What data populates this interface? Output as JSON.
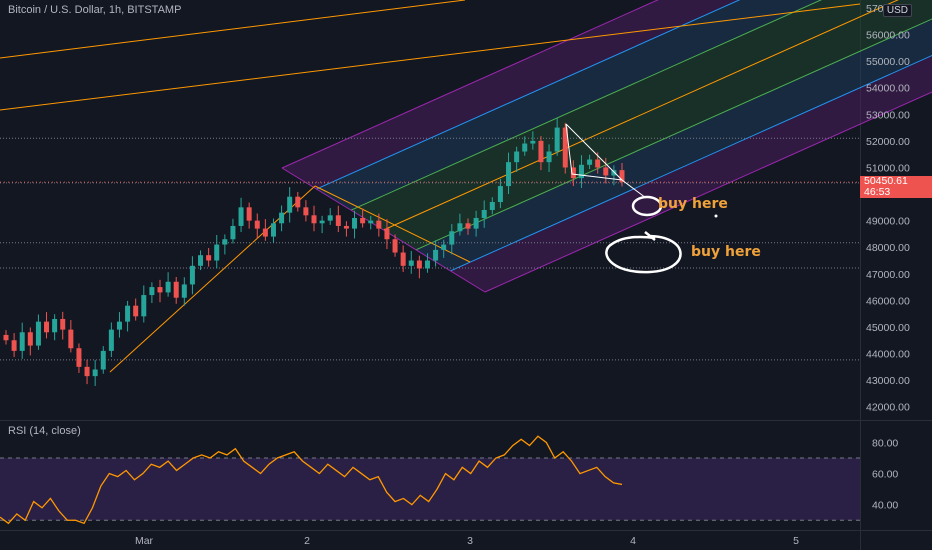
{
  "header": {
    "symbol_title": "Bitcoin / U.S. Dollar, 1h, BITSTAMP",
    "currency": "USD"
  },
  "price_tag": {
    "price": "50450.61",
    "countdown": "46:53"
  },
  "rsi": {
    "title": "RSI (14, close)",
    "upper_band": 70,
    "lower_band": 30
  },
  "annotations": {
    "buy_1": "buy here",
    "buy_2": "buy here"
  },
  "colors": {
    "background": "#131722",
    "up": "#26a69a",
    "down": "#ef5350",
    "rsi_line": "#ff9800",
    "rsi_band_fill": "#2a1f45",
    "channel_outer": "#9c27b0",
    "channel_mid": "#2196f3",
    "channel_inner": "#4caf50",
    "median": "#ff9800",
    "annotation": "#f0a23a"
  },
  "chart_data": {
    "type": "candlestick",
    "title": "Bitcoin / U.S. Dollar, 1h, BITSTAMP",
    "y_ticks": [
      42000,
      43000,
      44000,
      45000,
      46000,
      47000,
      48000,
      49000,
      50000,
      51000,
      52000,
      53000,
      54000,
      55000,
      56000,
      57000
    ],
    "y_tick_labels": [
      "42000.00",
      "43000.00",
      "44000.00",
      "45000.00",
      "46000.00",
      "47000.00",
      "48000.00",
      "49000.00",
      "50000.00",
      "51000.00",
      "52000.00",
      "53000.00",
      "54000.00",
      "55000.00",
      "56000.00",
      "57000.00"
    ],
    "x_ticks": [
      "Mar",
      "2",
      "3",
      "4",
      "5"
    ],
    "ylim": [
      41500,
      57300
    ],
    "horizontal_levels": [
      52100,
      50420,
      48170,
      47220,
      43760
    ],
    "close_path": [
      44500,
      44100,
      44800,
      44300,
      45200,
      44800,
      45300,
      44900,
      44200,
      43500,
      43150,
      43400,
      44100,
      44900,
      45200,
      45800,
      45400,
      46200,
      46500,
      46300,
      46700,
      46100,
      46600,
      47300,
      47700,
      47500,
      48100,
      48300,
      48800,
      49500,
      49000,
      48700,
      48400,
      48900,
      49300,
      49900,
      49500,
      49200,
      48900,
      49000,
      49200,
      48800,
      48700,
      49100,
      48900,
      49000,
      48700,
      48300,
      47800,
      47300,
      47500,
      47200,
      47500,
      47900,
      48100,
      48600,
      48900,
      48700,
      49100,
      49400,
      49700,
      50300,
      51200,
      51600,
      51900,
      52000,
      51200,
      51600,
      52500,
      51000,
      50600,
      51100,
      51300,
      51000,
      50700,
      50900,
      50450
    ],
    "rsi_values": [
      32,
      28,
      34,
      30,
      42,
      38,
      44,
      36,
      30,
      30,
      28,
      38,
      52,
      60,
      58,
      62,
      56,
      60,
      66,
      64,
      68,
      62,
      66,
      70,
      72,
      70,
      74,
      72,
      76,
      68,
      64,
      60,
      66,
      70,
      72,
      74,
      68,
      64,
      60,
      66,
      62,
      58,
      64,
      60,
      56,
      58,
      48,
      42,
      44,
      40,
      46,
      42,
      50,
      60,
      56,
      64,
      60,
      68,
      64,
      70,
      72,
      78,
      82,
      78,
      84,
      80,
      70,
      74,
      68,
      60,
      62,
      64,
      58,
      54,
      53
    ],
    "rsi_y_ticks": [
      40,
      60,
      80
    ],
    "rsi_y_tick_labels": [
      "40.00",
      "60.00",
      "80.00"
    ],
    "rsi_ylim": [
      25,
      88
    ]
  }
}
